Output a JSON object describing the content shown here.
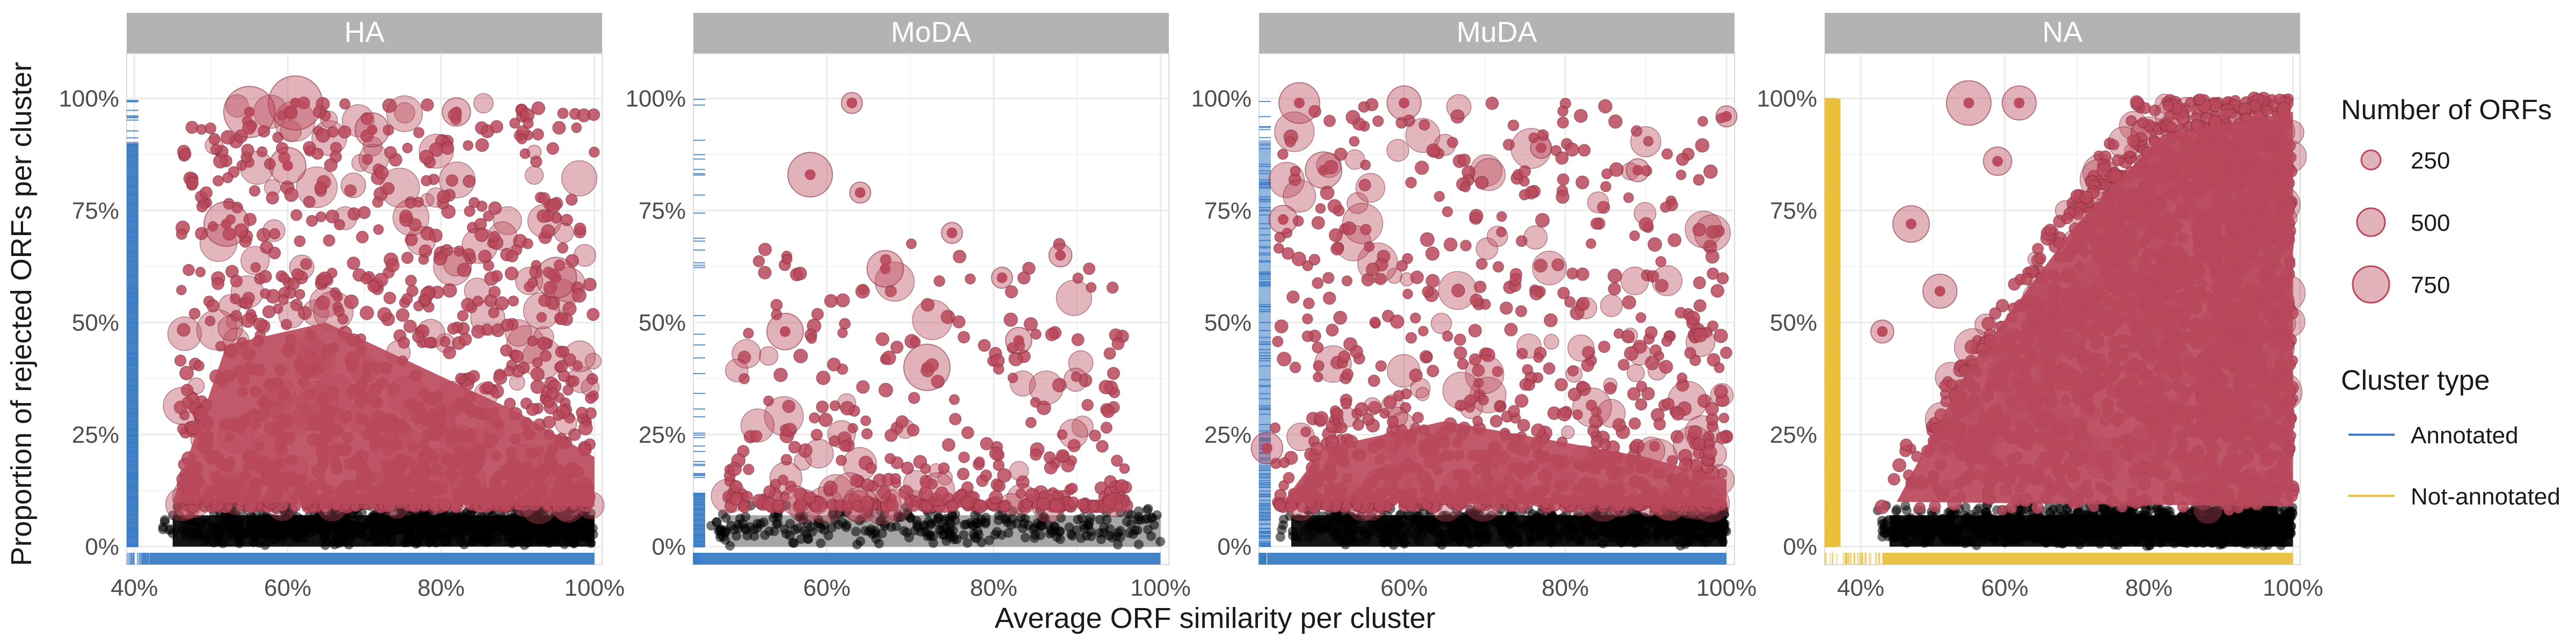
{
  "chart_data": {
    "type": "scatter",
    "xlabel": "Average ORF similarity per cluster",
    "ylabel": "Proportion of rejected ORFs per cluster",
    "colors": {
      "rejected_points": "#b9485b",
      "low_points": "#000000",
      "annotated": "#3a7cc5",
      "not_annotated": "#e9bf3c",
      "strip": "#b3b3b3",
      "grid": "#ebebeb"
    },
    "panels": [
      {
        "name": "HA",
        "xlim": [
          0.39,
          1.01
        ],
        "ylim": [
          -0.04,
          1.1
        ],
        "xticks": [
          0.4,
          0.6,
          0.8,
          1.0
        ],
        "xtick_labels": [
          "40%",
          "60%",
          "80%",
          "100%"
        ],
        "yticks": [
          0,
          0.25,
          0.5,
          0.75,
          1.0
        ],
        "ytick_labels": [
          "0%",
          "25%",
          "50%",
          "75%",
          "100%"
        ],
        "x_rug": "Annotated",
        "y_rug": "Annotated",
        "density": "dense"
      },
      {
        "name": "MoDA",
        "xlim": [
          0.44,
          1.01
        ],
        "ylim": [
          -0.04,
          1.1
        ],
        "xticks": [
          0.6,
          0.8,
          1.0
        ],
        "xtick_labels": [
          "60%",
          "80%",
          "100%"
        ],
        "yticks": [
          0,
          0.25,
          0.5,
          0.75,
          1.0
        ],
        "ytick_labels": [
          "0%",
          "25%",
          "50%",
          "75%",
          "100%"
        ],
        "x_rug": "Annotated",
        "y_rug": "Annotated",
        "density": "sparse"
      },
      {
        "name": "MuDA",
        "xlim": [
          0.42,
          1.01
        ],
        "ylim": [
          -0.04,
          1.1
        ],
        "xticks": [
          0.6,
          0.8,
          1.0
        ],
        "xtick_labels": [
          "60%",
          "80%",
          "100%"
        ],
        "yticks": [
          0,
          0.25,
          0.5,
          0.75,
          1.0
        ],
        "ytick_labels": [
          "0%",
          "25%",
          "50%",
          "75%",
          "100%"
        ],
        "x_rug": "Annotated",
        "y_rug": "Annotated",
        "density": "medium"
      },
      {
        "name": "NA",
        "xlim": [
          0.35,
          1.01
        ],
        "ylim": [
          -0.04,
          1.1
        ],
        "xticks": [
          0.4,
          0.6,
          0.8,
          1.0
        ],
        "xtick_labels": [
          "40%",
          "60%",
          "80%",
          "100%"
        ],
        "yticks": [
          0,
          0.25,
          0.5,
          0.75,
          1.0
        ],
        "ytick_labels": [
          "0%",
          "25%",
          "50%",
          "75%",
          "100%"
        ],
        "x_rug": "Not-annotated",
        "y_rug": "Not-annotated",
        "density": "very-dense"
      }
    ],
    "highlight_points": {
      "HA": [
        [
          0.61,
          0.99,
          800
        ],
        [
          0.55,
          0.97,
          700
        ],
        [
          0.52,
          0.72,
          500
        ],
        [
          0.6,
          0.85,
          300
        ],
        [
          0.95,
          0.6,
          400
        ],
        [
          0.71,
          0.93,
          250
        ],
        [
          0.82,
          0.97,
          150
        ]
      ],
      "MoDA": [
        [
          0.58,
          0.83,
          500
        ],
        [
          0.63,
          0.99,
          60
        ],
        [
          0.64,
          0.79,
          60
        ],
        [
          0.72,
          0.4,
          550
        ],
        [
          0.67,
          0.62,
          300
        ],
        [
          0.55,
          0.48,
          300
        ],
        [
          0.88,
          0.65,
          80
        ],
        [
          0.81,
          0.6,
          60
        ],
        [
          0.83,
          0.46,
          120
        ],
        [
          0.75,
          0.7,
          60
        ]
      ],
      "MuDA": [
        [
          0.47,
          0.99,
          400
        ],
        [
          0.6,
          0.99,
          250
        ],
        [
          0.5,
          0.84,
          300
        ],
        [
          0.45,
          0.73,
          150
        ],
        [
          0.43,
          0.22,
          200
        ],
        [
          0.89,
          0.84,
          80
        ],
        [
          1.0,
          0.96,
          60
        ],
        [
          0.77,
          0.89,
          60
        ]
      ],
      "NA": [
        [
          0.55,
          0.99,
          500
        ],
        [
          0.62,
          0.99,
          250
        ],
        [
          0.47,
          0.72,
          300
        ],
        [
          0.51,
          0.57,
          250
        ],
        [
          0.59,
          0.86,
          150
        ],
        [
          0.43,
          0.48,
          80
        ]
      ]
    },
    "size_legend": {
      "title": "Number of ORFs",
      "values": [
        250,
        500,
        750
      ],
      "labels": [
        "250",
        "500",
        "750"
      ]
    },
    "color_legend": {
      "title": "Cluster type",
      "items": [
        {
          "label": "Annotated",
          "color": "#3a7cc5"
        },
        {
          "label": "Not-annotated",
          "color": "#e9bf3c"
        }
      ]
    }
  }
}
